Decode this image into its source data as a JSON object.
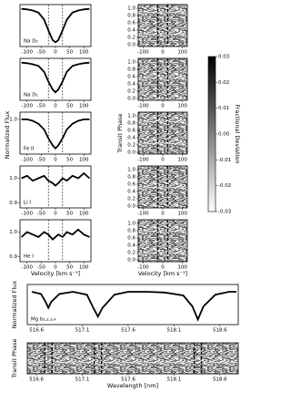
{
  "chart_data": [
    {
      "type": "line",
      "annotation": "Na D₂",
      "color": "#000000",
      "x": [
        -120,
        -100,
        -80,
        -60,
        -40,
        -25,
        -10,
        0,
        10,
        25,
        40,
        60,
        80,
        100,
        120
      ],
      "values": [
        1.0,
        0.99,
        0.97,
        0.93,
        0.8,
        0.6,
        0.42,
        0.38,
        0.42,
        0.6,
        0.8,
        0.93,
        0.97,
        0.99,
        1.0
      ],
      "xlim": [
        -125,
        125
      ],
      "ylim": [
        0.3,
        1.08
      ],
      "xticks": [
        -100,
        -50,
        0,
        50,
        100
      ],
      "vlines": [
        -25,
        25
      ]
    },
    {
      "type": "line",
      "annotation": "Na D₁",
      "color": "#000000",
      "x": [
        -120,
        -100,
        -80,
        -60,
        -40,
        -25,
        -10,
        0,
        10,
        25,
        40,
        60,
        80,
        100,
        120
      ],
      "values": [
        1.0,
        0.99,
        0.97,
        0.94,
        0.83,
        0.65,
        0.5,
        0.45,
        0.5,
        0.65,
        0.83,
        0.94,
        0.97,
        0.99,
        1.0
      ],
      "xlim": [
        -125,
        125
      ],
      "ylim": [
        0.3,
        1.08
      ],
      "xticks": [
        -100,
        -50,
        0,
        50,
        100
      ],
      "vlines": [
        -25,
        25
      ]
    },
    {
      "type": "line",
      "annotation": "Fe II",
      "color": "#000000",
      "ylabel": "Normalized Flux",
      "x": [
        -120,
        -100,
        -80,
        -60,
        -40,
        -25,
        -10,
        0,
        10,
        25,
        40,
        60,
        80,
        100,
        120
      ],
      "values": [
        1.0,
        1.0,
        0.99,
        0.97,
        0.93,
        0.87,
        0.82,
        0.8,
        0.82,
        0.87,
        0.93,
        0.97,
        0.99,
        1.0,
        1.0
      ],
      "xlim": [
        -125,
        125
      ],
      "ylim": [
        0.76,
        1.05
      ],
      "xticks": [
        -100,
        -50,
        0,
        50,
        100
      ],
      "yticks": [
        {
          "value": 1,
          "label": "1.0"
        }
      ],
      "vlines": [
        -25,
        25
      ]
    },
    {
      "type": "line",
      "annotation": "Li I",
      "color": "#000000",
      "x": [
        -120,
        -100,
        -80,
        -60,
        -40,
        -25,
        -10,
        0,
        10,
        25,
        40,
        60,
        80,
        100,
        120
      ],
      "values": [
        1.0,
        1.01,
        0.99,
        1.0,
        1.01,
        0.99,
        0.98,
        0.97,
        0.98,
        1.0,
        0.99,
        1.01,
        1.0,
        1.02,
        1.0
      ],
      "xlim": [
        -125,
        125
      ],
      "ylim": [
        0.88,
        1.05
      ],
      "xticks": [
        -100,
        -50,
        0,
        50,
        100
      ],
      "yticks": [
        {
          "value": 0.9,
          "label": "0.9"
        },
        {
          "value": 1,
          "label": "1.0"
        }
      ],
      "vlines": [
        -25,
        25
      ]
    },
    {
      "type": "line",
      "annotation": "He I",
      "color": "#000000",
      "xlabel": "Velocity [km s⁻¹]",
      "x": [
        -120,
        -100,
        -80,
        -60,
        -40,
        -25,
        -10,
        0,
        10,
        25,
        40,
        60,
        80,
        100,
        120
      ],
      "values": [
        0.98,
        1.0,
        0.99,
        0.98,
        1.0,
        0.99,
        0.97,
        0.98,
        0.99,
        0.98,
        1.0,
        0.99,
        1.01,
        0.99,
        0.98
      ],
      "xlim": [
        -125,
        125
      ],
      "ylim": [
        0.88,
        1.05
      ],
      "xticks": [
        -100,
        -50,
        0,
        50,
        100
      ],
      "yticks": [
        {
          "value": 0.9,
          "label": "0.9"
        },
        {
          "value": 1,
          "label": "1.0"
        }
      ],
      "vlines": [
        -25,
        25
      ]
    },
    {
      "type": "heatmap",
      "xlim": [
        -125,
        125
      ],
      "ylim": [
        -0.05,
        1.1
      ],
      "xticks": [
        -100,
        0,
        100
      ],
      "vlines": [
        -25,
        25
      ],
      "yticks": [
        {
          "value": 0,
          "label": "0.0"
        },
        0.2,
        0.4,
        0.6,
        0.8,
        {
          "value": 1,
          "label": "1.0"
        }
      ]
    },
    {
      "type": "heatmap",
      "xlim": [
        -125,
        125
      ],
      "ylim": [
        -0.05,
        1.1
      ],
      "xticks": [
        -100,
        0,
        100
      ],
      "vlines": [
        -25,
        25
      ],
      "yticks": [
        {
          "value": 0,
          "label": "0.0"
        },
        0.2,
        0.4,
        0.6,
        0.8,
        {
          "value": 1,
          "label": "1.0"
        }
      ]
    },
    {
      "type": "heatmap",
      "ylabel": "Transit Phase",
      "xlim": [
        -125,
        125
      ],
      "ylim": [
        -0.05,
        1.1
      ],
      "xticks": [
        -100,
        0,
        100
      ],
      "vlines": [
        -25,
        25
      ],
      "yticks": [
        {
          "value": 0,
          "label": "0.0"
        },
        0.2,
        0.4,
        0.6,
        0.8,
        {
          "value": 1,
          "label": "1.0"
        }
      ]
    },
    {
      "type": "heatmap",
      "xlim": [
        -125,
        125
      ],
      "ylim": [
        -0.05,
        1.1
      ],
      "xticks": [
        -100,
        0,
        100
      ],
      "vlines": [
        -25,
        25
      ],
      "yticks": [
        {
          "value": 0,
          "label": "0.0"
        },
        0.2,
        0.4,
        0.6,
        0.8,
        {
          "value": 1,
          "label": "1.0"
        }
      ]
    },
    {
      "type": "heatmap",
      "xlabel": "Velocity [km s⁻¹]",
      "xlim": [
        -125,
        125
      ],
      "ylim": [
        -0.05,
        1.1
      ],
      "xticks": [
        -100,
        0,
        100
      ],
      "vlines": [
        -25,
        25
      ],
      "yticks": [
        {
          "value": 0,
          "label": "0.0"
        },
        0.2,
        0.4,
        0.6,
        0.8,
        {
          "value": 1,
          "label": "1.0"
        }
      ]
    },
    {
      "type": "colorbar",
      "label": "Fractional Deviation",
      "clim": [
        -0.03,
        0.03
      ],
      "colors": [
        "#ffffff",
        "#000000"
      ],
      "ticks": [
        0.03,
        0.02,
        0.01,
        {
          "value": 0,
          "label": "0.00"
        },
        -0.01,
        -0.02,
        -0.03
      ]
    },
    {
      "type": "line",
      "annotation": "Mg b₁,₂,₃,₄",
      "ylabel": "Normalized Flux",
      "color": "#000000",
      "x": [
        516.55,
        516.65,
        516.7,
        516.73,
        516.76,
        516.85,
        517.0,
        517.15,
        517.22,
        517.27,
        517.32,
        517.45,
        517.6,
        517.8,
        518.0,
        518.2,
        518.3,
        518.36,
        518.42,
        518.55,
        518.7,
        518.78
      ],
      "values": [
        1.0,
        0.97,
        0.86,
        0.78,
        0.86,
        0.97,
        1.0,
        0.96,
        0.78,
        0.66,
        0.78,
        0.96,
        1.0,
        1.0,
        0.99,
        0.95,
        0.8,
        0.62,
        0.8,
        0.96,
        1.0,
        1.0
      ],
      "xlim": [
        516.5,
        518.8
      ],
      "ylim": [
        0.55,
        1.1
      ],
      "xticks": [
        516.6,
        517.1,
        517.6,
        518.1,
        518.6
      ]
    },
    {
      "type": "heatmap",
      "ylabel": "Transit Phase",
      "xlabel": "Wavelength [nm]",
      "xlim": [
        516.5,
        518.8
      ],
      "ylim": [
        0,
        1
      ],
      "xticks": [
        516.6,
        517.1,
        517.6,
        518.1,
        518.6
      ],
      "vlines": [
        516.69,
        516.77,
        517.23,
        517.31,
        518.32,
        518.4
      ]
    }
  ]
}
